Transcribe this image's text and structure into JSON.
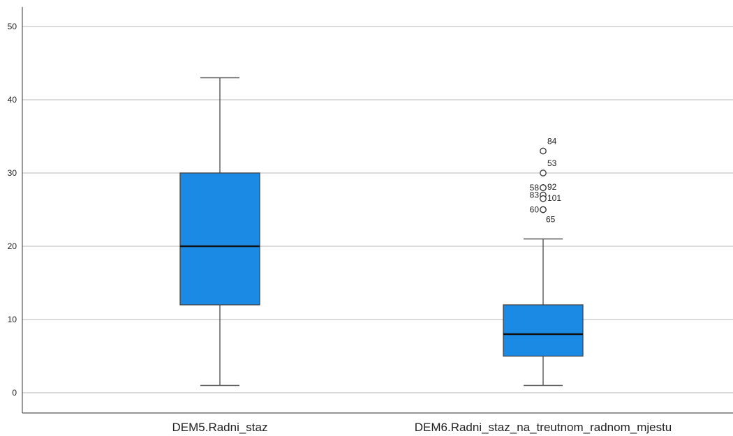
{
  "chart_data": {
    "type": "boxplot",
    "ylim": [
      0,
      50
    ],
    "yticks": [
      0,
      10,
      20,
      30,
      40,
      50
    ],
    "grid": true,
    "box_color": "#1a8ae5",
    "series": [
      {
        "name": "DEM5.Radni_staz",
        "whisker_low": 1,
        "q1": 12,
        "median": 20,
        "q3": 30,
        "whisker_high": 43,
        "outliers": []
      },
      {
        "name": "DEM6.Radni_staz_na_treutnom_radnom_mjestu",
        "whisker_low": 1,
        "q1": 5,
        "median": 8,
        "q3": 12,
        "whisker_high": 21,
        "outliers": [
          {
            "value": 33,
            "label": "84",
            "side": "right"
          },
          {
            "value": 30,
            "label": "53",
            "side": "right"
          },
          {
            "value": 28,
            "label": "58",
            "side": "left"
          },
          {
            "value": 28,
            "label": "92",
            "side": "right"
          },
          {
            "value": 27,
            "label": "83",
            "side": "left"
          },
          {
            "value": 26.5,
            "label": "101",
            "side": "right"
          },
          {
            "value": 25,
            "label": "60",
            "side": "left"
          },
          {
            "value": 25,
            "label": "65",
            "side": "right-low"
          }
        ]
      }
    ]
  }
}
